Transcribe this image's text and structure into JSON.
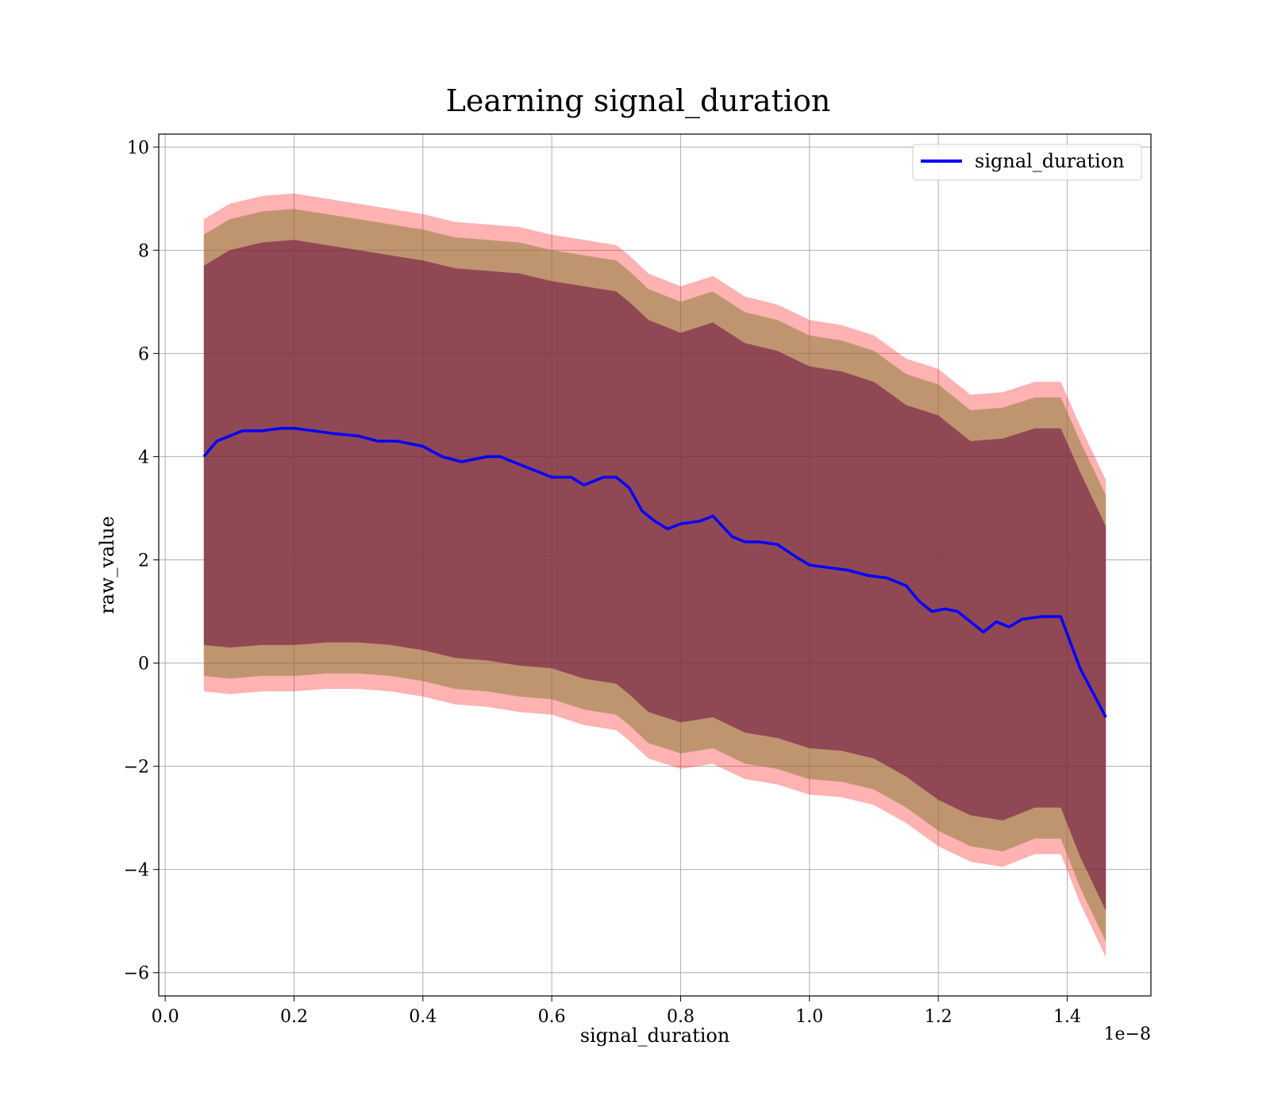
{
  "chart_data": {
    "type": "line",
    "title": "Learning signal_duration",
    "xlabel": "signal_duration",
    "ylabel": "raw_value",
    "x_offset_label": "1e−8",
    "x_scale_exponent": -8,
    "xlim": [
      -1e-10,
      1.53e-08
    ],
    "ylim": [
      -6.45,
      10.25
    ],
    "grid": true,
    "legend_position": "top-right",
    "x_ticks": [
      {
        "value": 0.0,
        "label": "0.0"
      },
      {
        "value": 2e-09,
        "label": "0.2"
      },
      {
        "value": 4e-09,
        "label": "0.4"
      },
      {
        "value": 6e-09,
        "label": "0.6"
      },
      {
        "value": 8e-09,
        "label": "0.8"
      },
      {
        "value": 1e-08,
        "label": "1.0"
      },
      {
        "value": 1.2e-08,
        "label": "1.2"
      },
      {
        "value": 1.4e-08,
        "label": "1.4"
      }
    ],
    "y_ticks": [
      {
        "value": -6,
        "label": "−6"
      },
      {
        "value": -4,
        "label": "−4"
      },
      {
        "value": -2,
        "label": "−2"
      },
      {
        "value": 0,
        "label": "0"
      },
      {
        "value": 2,
        "label": "2"
      },
      {
        "value": 4,
        "label": "4"
      },
      {
        "value": 6,
        "label": "6"
      },
      {
        "value": 8,
        "label": "8"
      },
      {
        "value": 10,
        "label": "10"
      }
    ],
    "colors": {
      "line": "#0000ff",
      "band_outer": "#ff0000",
      "band_middle": "#8b7d3a",
      "band_inner": "#6a0a3e"
    },
    "series": [
      {
        "name": "signal_duration",
        "x": [
          6e-10,
          8e-10,
          1e-09,
          1.2e-09,
          1.5e-09,
          1.8e-09,
          2e-09,
          2.3e-09,
          2.6e-09,
          3e-09,
          3.3e-09,
          3.6e-09,
          4e-09,
          4.3e-09,
          4.6e-09,
          5e-09,
          5.2e-09,
          5.5e-09,
          5.8e-09,
          6e-09,
          6.3e-09,
          6.5e-09,
          6.8e-09,
          7e-09,
          7.2e-09,
          7.4e-09,
          7.6e-09,
          7.8e-09,
          8e-09,
          8.3e-09,
          8.5e-09,
          8.8e-09,
          9e-09,
          9.2e-09,
          9.5e-09,
          9.8e-09,
          1e-08,
          1.03e-08,
          1.06e-08,
          1.09e-08,
          1.12e-08,
          1.15e-08,
          1.17e-08,
          1.19e-08,
          1.21e-08,
          1.23e-08,
          1.25e-08,
          1.27e-08,
          1.29e-08,
          1.31e-08,
          1.33e-08,
          1.36e-08,
          1.39e-08,
          1.42e-08,
          1.46e-08
        ],
        "values": [
          4.0,
          4.3,
          4.4,
          4.5,
          4.5,
          4.55,
          4.55,
          4.5,
          4.45,
          4.4,
          4.3,
          4.3,
          4.2,
          4.0,
          3.9,
          4.0,
          4.0,
          3.85,
          3.7,
          3.6,
          3.6,
          3.45,
          3.6,
          3.6,
          3.4,
          2.95,
          2.75,
          2.6,
          2.7,
          2.75,
          2.85,
          2.45,
          2.35,
          2.35,
          2.3,
          2.05,
          1.9,
          1.85,
          1.8,
          1.7,
          1.65,
          1.5,
          1.2,
          1.0,
          1.05,
          1.0,
          0.8,
          0.6,
          0.8,
          0.7,
          0.85,
          0.9,
          0.9,
          -0.1,
          -1.05
        ]
      }
    ],
    "bands": [
      {
        "name": "outer",
        "x": [
          6e-10,
          1e-09,
          1.5e-09,
          2e-09,
          2.5e-09,
          3e-09,
          3.5e-09,
          4e-09,
          4.5e-09,
          5e-09,
          5.5e-09,
          6e-09,
          6.5e-09,
          7e-09,
          7.2e-09,
          7.5e-09,
          8e-09,
          8.5e-09,
          9e-09,
          9.5e-09,
          1e-08,
          1.05e-08,
          1.1e-08,
          1.15e-08,
          1.2e-08,
          1.25e-08,
          1.3e-08,
          1.35e-08,
          1.39e-08,
          1.42e-08,
          1.46e-08
        ],
        "upper": [
          8.6,
          8.9,
          9.05,
          9.1,
          9.0,
          8.9,
          8.8,
          8.7,
          8.55,
          8.5,
          8.45,
          8.3,
          8.2,
          8.1,
          7.9,
          7.55,
          7.3,
          7.5,
          7.1,
          6.95,
          6.65,
          6.55,
          6.35,
          5.9,
          5.7,
          5.2,
          5.25,
          5.45,
          5.45,
          4.6,
          3.55
        ],
        "lower": [
          -0.55,
          -0.6,
          -0.55,
          -0.55,
          -0.5,
          -0.5,
          -0.55,
          -0.65,
          -0.8,
          -0.85,
          -0.95,
          -1.0,
          -1.2,
          -1.3,
          -1.5,
          -1.85,
          -2.05,
          -1.95,
          -2.25,
          -2.35,
          -2.55,
          -2.6,
          -2.75,
          -3.1,
          -3.55,
          -3.85,
          -3.95,
          -3.7,
          -3.7,
          -4.65,
          -5.7
        ]
      },
      {
        "name": "middle",
        "x": [
          6e-10,
          1e-09,
          1.5e-09,
          2e-09,
          2.5e-09,
          3e-09,
          3.5e-09,
          4e-09,
          4.5e-09,
          5e-09,
          5.5e-09,
          6e-09,
          6.5e-09,
          7e-09,
          7.2e-09,
          7.5e-09,
          8e-09,
          8.5e-09,
          9e-09,
          9.5e-09,
          1e-08,
          1.05e-08,
          1.1e-08,
          1.15e-08,
          1.2e-08,
          1.25e-08,
          1.3e-08,
          1.35e-08,
          1.39e-08,
          1.42e-08,
          1.46e-08
        ],
        "upper": [
          8.3,
          8.6,
          8.75,
          8.8,
          8.7,
          8.6,
          8.5,
          8.4,
          8.25,
          8.2,
          8.15,
          8.0,
          7.9,
          7.8,
          7.6,
          7.25,
          7.0,
          7.2,
          6.8,
          6.65,
          6.35,
          6.25,
          6.05,
          5.6,
          5.4,
          4.9,
          4.95,
          5.15,
          5.15,
          4.3,
          3.25
        ],
        "lower": [
          -0.25,
          -0.3,
          -0.25,
          -0.25,
          -0.2,
          -0.2,
          -0.25,
          -0.35,
          -0.5,
          -0.55,
          -0.65,
          -0.7,
          -0.9,
          -1.0,
          -1.2,
          -1.55,
          -1.75,
          -1.65,
          -1.95,
          -2.05,
          -2.25,
          -2.3,
          -2.45,
          -2.8,
          -3.25,
          -3.55,
          -3.65,
          -3.4,
          -3.4,
          -4.35,
          -5.4
        ]
      },
      {
        "name": "inner",
        "x": [
          6e-10,
          1e-09,
          1.5e-09,
          2e-09,
          2.5e-09,
          3e-09,
          3.5e-09,
          4e-09,
          4.5e-09,
          5e-09,
          5.5e-09,
          6e-09,
          6.5e-09,
          7e-09,
          7.2e-09,
          7.5e-09,
          8e-09,
          8.5e-09,
          9e-09,
          9.5e-09,
          1e-08,
          1.05e-08,
          1.1e-08,
          1.15e-08,
          1.2e-08,
          1.25e-08,
          1.3e-08,
          1.35e-08,
          1.39e-08,
          1.42e-08,
          1.46e-08
        ],
        "upper": [
          7.7,
          8.0,
          8.15,
          8.2,
          8.1,
          8.0,
          7.9,
          7.8,
          7.65,
          7.6,
          7.55,
          7.4,
          7.3,
          7.2,
          7.0,
          6.65,
          6.4,
          6.6,
          6.2,
          6.05,
          5.75,
          5.65,
          5.45,
          5.0,
          4.8,
          4.3,
          4.35,
          4.55,
          4.55,
          3.7,
          2.65
        ],
        "lower": [
          0.35,
          0.3,
          0.35,
          0.35,
          0.4,
          0.4,
          0.35,
          0.25,
          0.1,
          0.05,
          -0.05,
          -0.1,
          -0.3,
          -0.4,
          -0.6,
          -0.95,
          -1.15,
          -1.05,
          -1.35,
          -1.45,
          -1.65,
          -1.7,
          -1.85,
          -2.2,
          -2.65,
          -2.95,
          -3.05,
          -2.8,
          -2.8,
          -3.75,
          -4.8
        ]
      }
    ],
    "legend": [
      {
        "label": "signal_duration",
        "color": "#0000ff"
      }
    ]
  }
}
